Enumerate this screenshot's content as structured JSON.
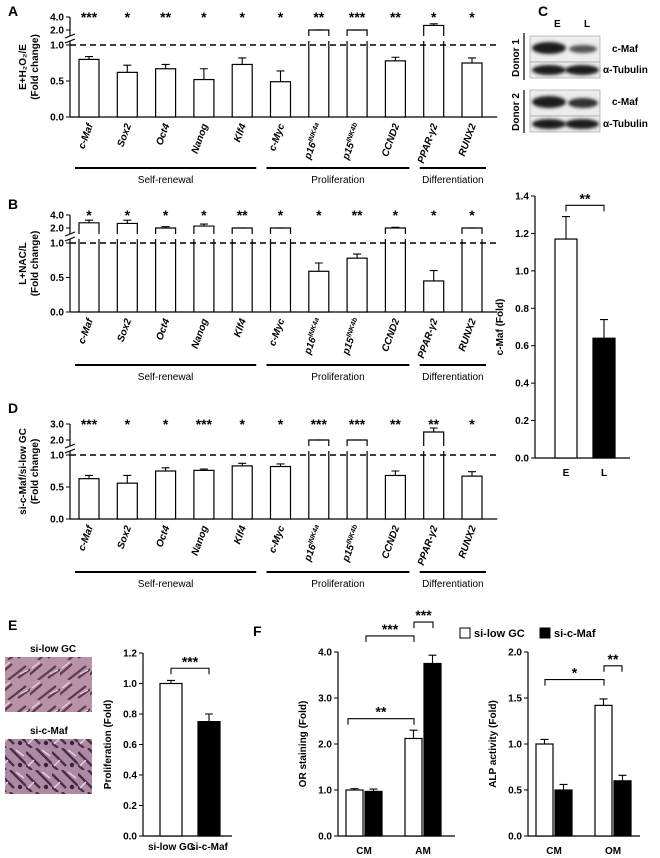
{
  "panels": {
    "A": "A",
    "B": "B",
    "C": "C",
    "D": "D",
    "E": "E",
    "F": "F"
  },
  "gene_groups": [
    {
      "label": "Self-renewal"
    },
    {
      "label": "Proliferation"
    },
    {
      "label": "Differentiation"
    }
  ],
  "gene_labels": [
    "c-Maf",
    "Sox2",
    "Oct4",
    "Nanog",
    "Klf4",
    "c-Myc",
    "p16INK4a",
    "p15INK4b",
    "CCND2",
    "PPAR-γ2",
    "RUNX2"
  ],
  "blot": {
    "lanes": [
      "E",
      "L"
    ],
    "donors": [
      "Donor 1",
      "Donor 2"
    ],
    "bands": [
      "c-Maf",
      "α-Tubulin"
    ]
  },
  "images": {
    "top": "si-low GC",
    "bottom": "si-c-Maf"
  },
  "legend": {
    "open": "si-low GC",
    "filled": "si-c-Maf",
    "open_color": "#ffffff",
    "filled_color": "#000000"
  },
  "chart_data": [
    {
      "id": "A",
      "type": "bar",
      "ylabel_line1": "E+H₂O₂/E",
      "ylabel_line2": "(Fold change)",
      "categories": [
        "c-Maf",
        "Sox2",
        "Oct4",
        "Nanog",
        "Klf4",
        "c-Myc",
        "p16INK4a",
        "p15INK4b",
        "CCND2",
        "PPAR-γ2",
        "RUNX2"
      ],
      "values": [
        0.8,
        0.62,
        0.67,
        0.52,
        0.73,
        0.49,
        1.5,
        1.55,
        0.78,
        2.7,
        0.75
      ],
      "errors": [
        0.04,
        0.1,
        0.06,
        0.15,
        0.09,
        0.15,
        0.02,
        0.03,
        0.05,
        0.25,
        0.07
      ],
      "significance": [
        "***",
        "*",
        "**",
        "*",
        "*",
        "*",
        "**",
        "***",
        "**",
        "*",
        "*"
      ],
      "yticks_lower": [
        "0.0",
        "0.5",
        "1.0"
      ],
      "yticks_upper": [
        "2.0",
        "4.0"
      ],
      "reference_line": 1.0
    },
    {
      "id": "B",
      "type": "bar",
      "ylabel_line1": "L+NAC/L",
      "ylabel_line2": "(Fold change)",
      "categories": [
        "c-Maf",
        "Sox2",
        "Oct4",
        "Nanog",
        "Klf4",
        "c-Myc",
        "p16INK4a",
        "p15INK4b",
        "CCND2",
        "PPAR-γ2",
        "RUNX2"
      ],
      "values": [
        2.8,
        2.7,
        2.0,
        2.3,
        1.5,
        1.6,
        0.59,
        0.78,
        2.0,
        0.45,
        1.8
      ],
      "errors": [
        0.4,
        0.5,
        0.2,
        0.3,
        0.05,
        0.05,
        0.12,
        0.06,
        0.1,
        0.15,
        0.1
      ],
      "significance": [
        "*",
        "*",
        "*",
        "*",
        "**",
        "*",
        "*",
        "**",
        "*",
        "*",
        "*"
      ],
      "yticks_lower": [
        "0.0",
        "0.5",
        "1.0"
      ],
      "yticks_upper": [
        "2.0",
        "4.0"
      ],
      "reference_line": 1.0
    },
    {
      "id": "D",
      "type": "bar",
      "ylabel_line1": "si-c-Maf/si-low GC",
      "ylabel_line2": "(Fold change)",
      "categories": [
        "c-Maf",
        "Sox2",
        "Oct4",
        "Nanog",
        "Klf4",
        "c-Myc",
        "p16INK4a",
        "p15INK4b",
        "CCND2",
        "PPAR-γ2",
        "RUNX2"
      ],
      "values": [
        0.63,
        0.56,
        0.75,
        0.76,
        0.83,
        0.82,
        1.7,
        1.85,
        0.68,
        2.5,
        0.67
      ],
      "errors": [
        0.05,
        0.12,
        0.05,
        0.02,
        0.04,
        0.04,
        0.15,
        0.15,
        0.07,
        0.25,
        0.07
      ],
      "significance": [
        "***",
        "*",
        "*",
        "***",
        "*",
        "*",
        "***",
        "***",
        "**",
        "**",
        "*"
      ],
      "yticks_lower": [
        "0.0",
        "0.5",
        "1.0"
      ],
      "yticks_upper": [
        "2.0",
        "3.0"
      ],
      "reference_line": 1.0
    },
    {
      "id": "C-bar",
      "type": "bar",
      "ylabel": "c-Maf (Fold)",
      "categories": [
        "E",
        "L"
      ],
      "values": [
        1.17,
        0.64
      ],
      "errors": [
        0.12,
        0.1
      ],
      "fills": [
        "open",
        "filled"
      ],
      "yticks": [
        "0.0",
        "0.2",
        "0.4",
        "0.6",
        "0.8",
        "1.0",
        "1.2",
        "1.4"
      ],
      "ylim": [
        0,
        1.4
      ],
      "significance": "**"
    },
    {
      "id": "E-bar",
      "type": "bar",
      "ylabel": "Proliferation (Fold)",
      "categories": [
        "si-low GC",
        "si-c-Maf"
      ],
      "values": [
        1.0,
        0.75
      ],
      "errors": [
        0.02,
        0.05
      ],
      "fills": [
        "open",
        "filled"
      ],
      "yticks": [
        "0.0",
        "0.2",
        "0.4",
        "0.6",
        "0.8",
        "1.0",
        "1.2"
      ],
      "ylim": [
        0,
        1.2
      ],
      "significance": "***"
    },
    {
      "id": "F-OR",
      "type": "bar",
      "ylabel": "OR staining (Fold)",
      "categories": [
        "CM",
        "AM"
      ],
      "series": [
        {
          "name": "si-low GC",
          "values": [
            1.0,
            2.12
          ],
          "errors": [
            0.03,
            0.18
          ]
        },
        {
          "name": "si-c-Maf",
          "values": [
            0.97,
            3.75
          ],
          "errors": [
            0.05,
            0.18
          ]
        }
      ],
      "yticks": [
        "0.0",
        "1.0",
        "2.0",
        "3.0",
        "4.0"
      ],
      "ylim": [
        0,
        4.0
      ],
      "significance": [
        "**",
        "***",
        "***"
      ]
    },
    {
      "id": "F-ALP",
      "type": "bar",
      "ylabel": "ALP activity (Fold)",
      "categories": [
        "CM",
        "OM"
      ],
      "series": [
        {
          "name": "si-low GC",
          "values": [
            1.0,
            1.42
          ],
          "errors": [
            0.05,
            0.07
          ]
        },
        {
          "name": "si-c-Maf",
          "values": [
            0.5,
            0.6
          ],
          "errors": [
            0.06,
            0.06
          ]
        }
      ],
      "yticks": [
        "0.0",
        "0.5",
        "1.0",
        "1.5",
        "2.0"
      ],
      "ylim": [
        0,
        2.0
      ],
      "significance": [
        "*",
        "**"
      ]
    }
  ]
}
